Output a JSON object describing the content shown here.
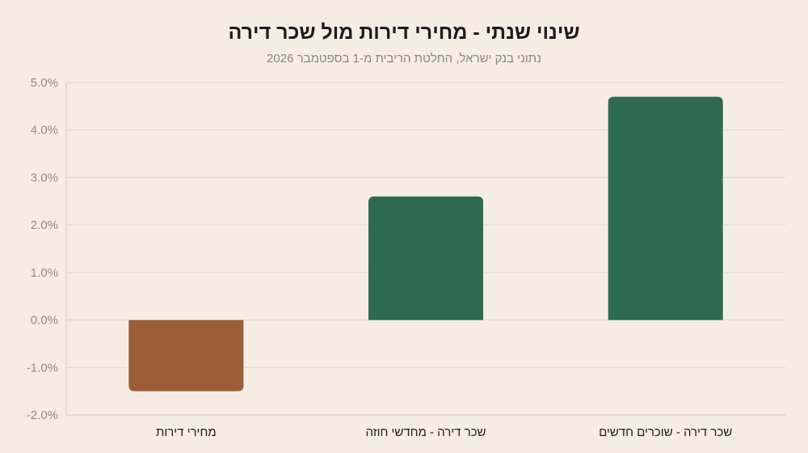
{
  "chart_data": {
    "type": "bar",
    "title": "שינוי שנתי - מחירי דירות מול שכר דירה",
    "subtitle": "נתוני בנק ישראל, החלטת הריבית מ-1 בספטמבר 2026",
    "categories": [
      "מחירי דירות",
      "שכר דירה - מחדשי חוזה",
      "שכר דירה - שוכרים חדשים"
    ],
    "values": [
      -1.5,
      2.6,
      4.7
    ],
    "bar_colors": [
      "#9b5e36",
      "#2e6a50",
      "#2e6a50"
    ],
    "ylim": [
      -2.0,
      5.0
    ],
    "yticks": [
      -2.0,
      -1.0,
      0.0,
      1.0,
      2.0,
      3.0,
      4.0,
      5.0
    ],
    "ytick_format": "percent_1dp",
    "grid": true,
    "legend": "none"
  }
}
